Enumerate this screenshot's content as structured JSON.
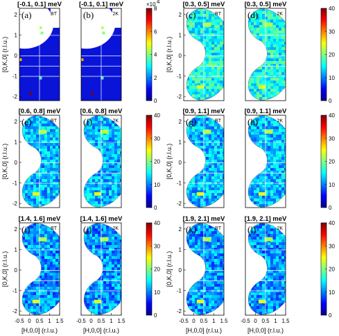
{
  "chart_data": {
    "type": "heatmap",
    "colormap": "jet",
    "grid": true,
    "xlabel": "[H,0,0] (r.l.u.)",
    "ylabel": "[0,K,0] (r.l.u.)",
    "xlim": [
      -0.5,
      1.5
    ],
    "ylim": [
      -2.2,
      2.3
    ],
    "x_ticks": [
      "-0.5",
      "0",
      "0.5",
      "1",
      "1.5"
    ],
    "y_ticks": [
      "-2",
      "-1",
      "0",
      "1",
      "2"
    ],
    "panels": [
      {
        "label": "(a)",
        "title": "[-0.1, 0.1] meV",
        "tag": "BT",
        "energy_range": [
          -0.1,
          0.1
        ]
      },
      {
        "label": "(b)",
        "title": "[-0.1, 0.1] meV",
        "tag": "2K",
        "energy_range": [
          -0.1,
          0.1
        ]
      },
      {
        "label": "(c)",
        "title": "[0.3, 0.5] meV",
        "tag": "BT",
        "energy_range": [
          0.3,
          0.5
        ]
      },
      {
        "label": "(d)",
        "title": "[0.3, 0.5] meV",
        "tag": "2K",
        "energy_range": [
          0.3,
          0.5
        ]
      },
      {
        "label": "(e)",
        "title": "[0.6, 0.8] meV",
        "tag": "BT",
        "energy_range": [
          0.6,
          0.8
        ]
      },
      {
        "label": "(f)",
        "title": "[0.6, 0.8] meV",
        "tag": "2K",
        "energy_range": [
          0.6,
          0.8
        ]
      },
      {
        "label": "(g)",
        "title": "[0.9, 1.1] meV",
        "tag": "BT",
        "energy_range": [
          0.9,
          1.1
        ]
      },
      {
        "label": "(h)",
        "title": "[0.9, 1.1] meV",
        "tag": "2K",
        "energy_range": [
          0.9,
          1.1
        ]
      },
      {
        "label": "(i)",
        "title": "[1.4, 1.6] meV",
        "tag": "BT",
        "energy_range": [
          1.4,
          1.6
        ]
      },
      {
        "label": "(j)",
        "title": "[1.4, 1.6] meV",
        "tag": "2K",
        "energy_range": [
          1.4,
          1.6
        ]
      },
      {
        "label": "(k)",
        "title": "[1.9, 2.1] meV",
        "tag": "BT",
        "energy_range": [
          1.9,
          2.1
        ]
      },
      {
        "label": "(l)",
        "title": "[1.9, 2.1] meV",
        "tag": "2K",
        "energy_range": [
          1.9,
          2.1
        ]
      }
    ],
    "colorbars": [
      {
        "ticks": [
          "0",
          "2",
          "4",
          "6",
          "8"
        ],
        "multiplier": "×10",
        "exponent": "4",
        "range": [
          0,
          80000
        ]
      },
      {
        "ticks": [
          "0",
          "10",
          "20",
          "30",
          "40"
        ],
        "range": [
          0,
          40
        ]
      },
      {
        "ticks": [
          "0",
          "10",
          "20",
          "30",
          "40"
        ],
        "range": [
          0,
          40
        ]
      },
      {
        "ticks": [
          "0",
          "10",
          "20",
          "30",
          "40"
        ],
        "range": [
          0,
          40
        ]
      },
      {
        "ticks": [
          "0",
          "10",
          "20",
          "30",
          "40"
        ],
        "range": [
          0,
          40
        ]
      },
      {
        "ticks": [
          "0",
          "10",
          "20",
          "30",
          "40"
        ],
        "range": [
          0,
          40
        ]
      }
    ]
  }
}
